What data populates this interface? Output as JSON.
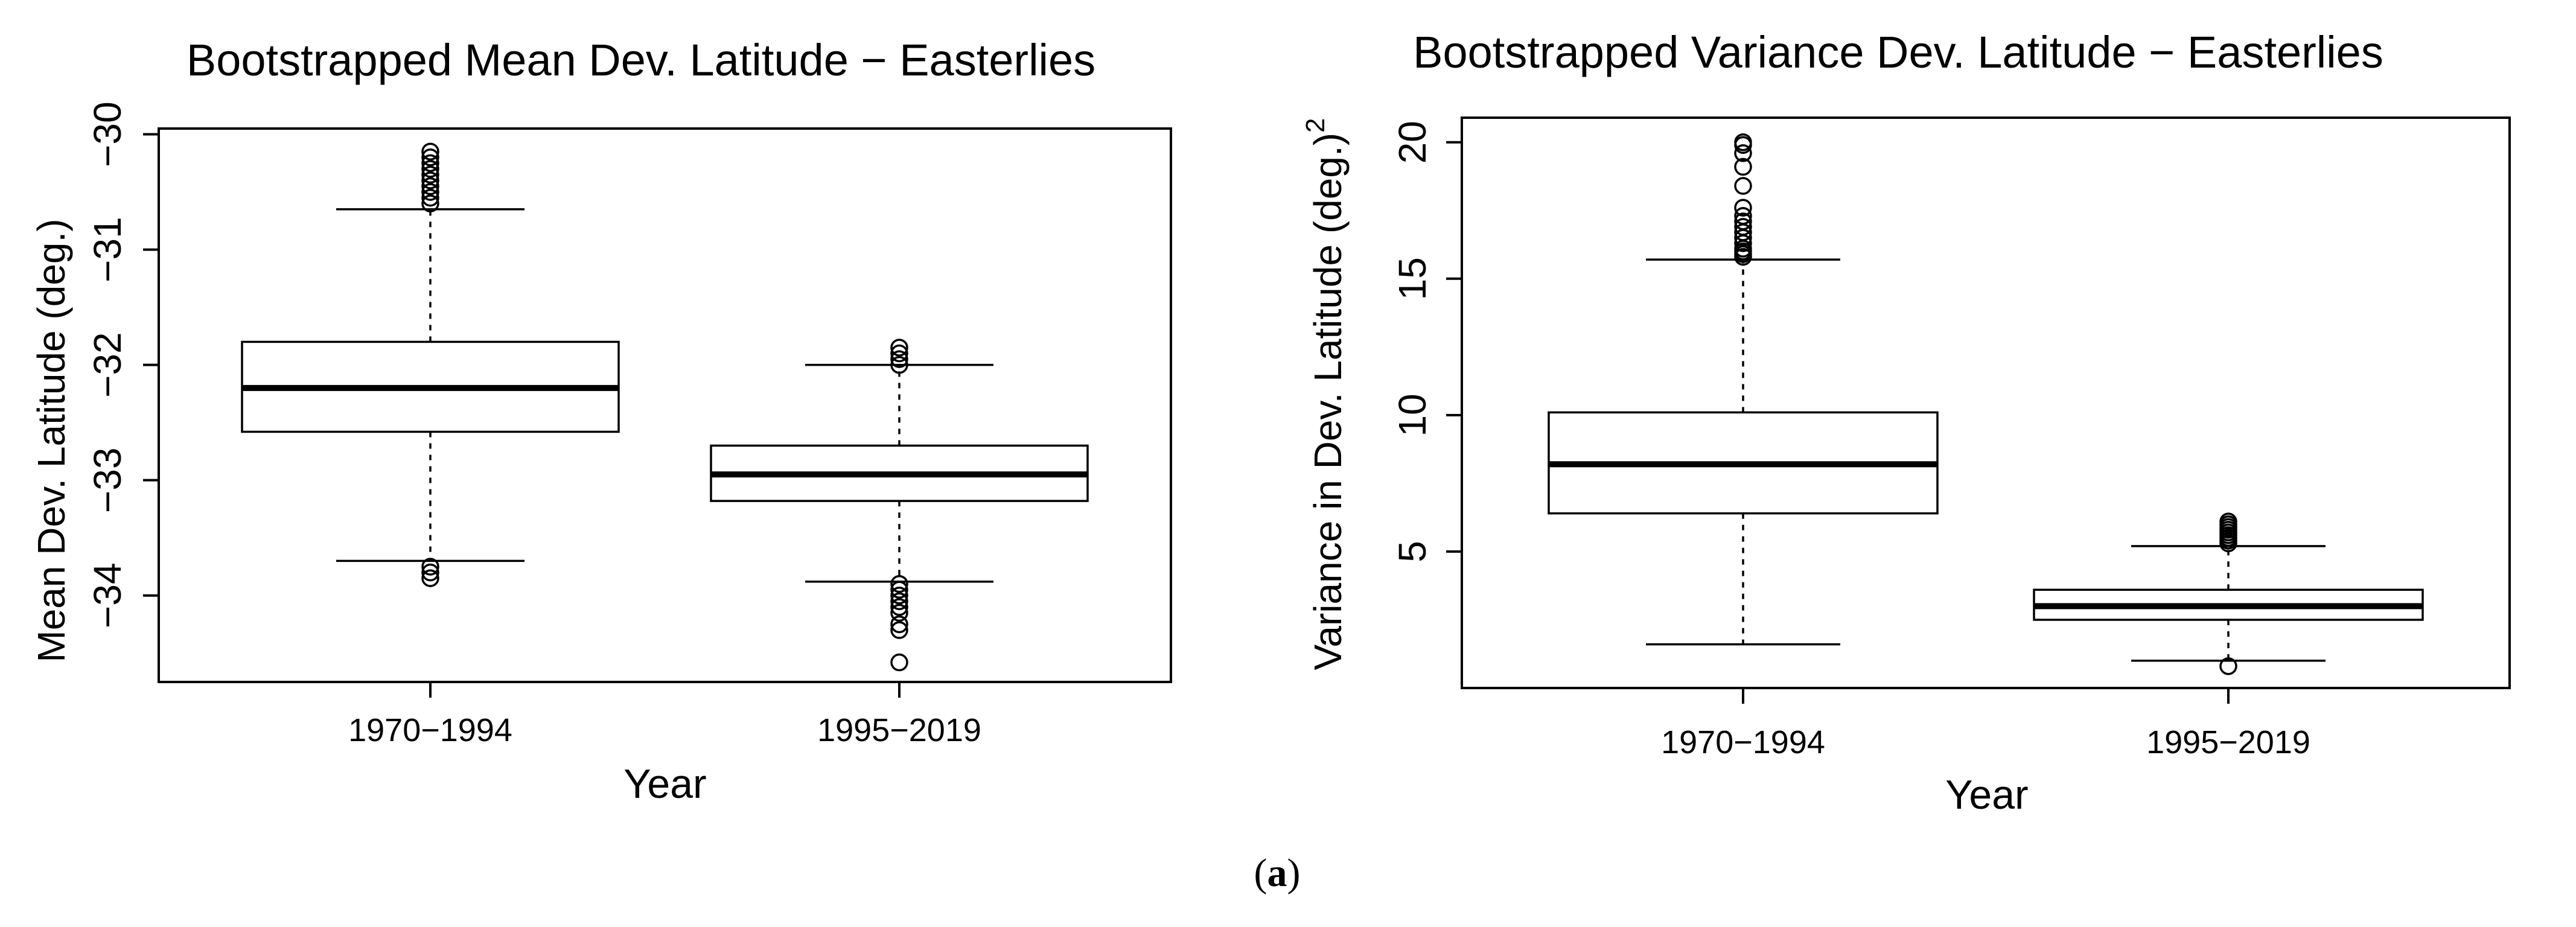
{
  "chart_data": [
    {
      "type": "boxplot",
      "title": "Bootstrapped Mean Dev. Latitude − Easterlies",
      "xlabel": "Year",
      "ylabel": "Mean Dev. Latitude (deg.)",
      "ylabel_sup": "",
      "categories": [
        "1970−1994",
        "1995−2019"
      ],
      "yticks": [
        -30,
        -31,
        -32,
        -33,
        -34
      ],
      "ytick_labels": [
        "−30",
        "−31",
        "−32",
        "−33",
        "−34"
      ],
      "ylim": [
        -34.75,
        -29.95
      ],
      "boxes": [
        {
          "category": "1970−1994",
          "whisker_low": -33.7,
          "q1": -32.58,
          "median": -32.2,
          "q3": -31.8,
          "whisker_high": -30.65,
          "outliers": [
            -30.15,
            -30.2,
            -30.25,
            -30.3,
            -30.35,
            -30.4,
            -30.45,
            -30.5,
            -30.55,
            -30.6,
            -33.75,
            -33.8,
            -33.85
          ]
        },
        {
          "category": "1995−2019",
          "whisker_low": -33.88,
          "q1": -33.18,
          "median": -32.95,
          "q3": -32.7,
          "whisker_high": -32.0,
          "outliers": [
            -31.85,
            -31.9,
            -31.95,
            -32.0,
            -33.9,
            -33.95,
            -34.0,
            -34.05,
            -34.1,
            -34.15,
            -34.25,
            -34.3,
            -34.58
          ]
        }
      ]
    },
    {
      "type": "boxplot",
      "title": "Bootstrapped Variance Dev. Latitude − Easterlies",
      "xlabel": "Year",
      "ylabel": "Variance in Dev. Latitude (deg.)",
      "ylabel_sup": "2",
      "categories": [
        "1970−1994",
        "1995−2019"
      ],
      "yticks": [
        5,
        10,
        15,
        20
      ],
      "ytick_labels": [
        "5",
        "10",
        "15",
        "20"
      ],
      "ylim": [
        0.0,
        20.9
      ],
      "boxes": [
        {
          "category": "1970−1994",
          "whisker_low": 1.6,
          "q1": 6.4,
          "median": 8.2,
          "q3": 10.1,
          "whisker_high": 15.7,
          "outliers": [
            15.8,
            15.9,
            16.0,
            16.1,
            16.3,
            16.5,
            16.7,
            16.9,
            17.1,
            17.3,
            17.6,
            18.4,
            19.1,
            19.6,
            19.9,
            20.0
          ]
        },
        {
          "category": "1995−2019",
          "whisker_low": 1.0,
          "q1": 2.5,
          "median": 3.0,
          "q3": 3.6,
          "whisker_high": 5.2,
          "outliers": [
            5.3,
            5.4,
            5.5,
            5.6,
            5.7,
            5.8,
            5.9,
            6.0,
            6.1,
            0.8
          ]
        }
      ]
    }
  ],
  "caption": {
    "open": "(",
    "letter": "a",
    "close": ")"
  }
}
